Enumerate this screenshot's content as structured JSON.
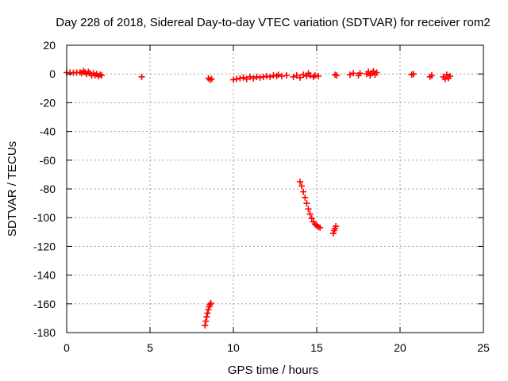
{
  "chart_data": {
    "type": "scatter",
    "title": "Day 228 of 2018, Sidereal Day-to-day VTEC variation (SDTVAR) for receiver rom2",
    "xlabel": "GPS time / hours",
    "ylabel": "SDTVAR / TECUs",
    "xlim": [
      0,
      25
    ],
    "ylim": [
      -180,
      20
    ],
    "xticks": [
      0,
      5,
      10,
      15,
      20,
      25
    ],
    "yticks": [
      20,
      0,
      -20,
      -40,
      -60,
      -80,
      -100,
      -120,
      -140,
      -160,
      -180
    ],
    "grid": true,
    "marker": "plus",
    "color": "#ff0000",
    "series": [
      {
        "name": "SDTVAR",
        "points": [
          [
            0.0,
            1.0
          ],
          [
            0.2,
            1.0
          ],
          [
            0.4,
            0.8
          ],
          [
            0.6,
            1.0
          ],
          [
            0.8,
            1.2
          ],
          [
            0.9,
            0.5
          ],
          [
            1.0,
            2.0
          ],
          [
            1.1,
            1.2
          ],
          [
            1.2,
            0.0
          ],
          [
            1.3,
            1.5
          ],
          [
            1.4,
            0.5
          ],
          [
            1.5,
            -1.0
          ],
          [
            1.6,
            0.5
          ],
          [
            1.7,
            -1.0
          ],
          [
            1.8,
            0.0
          ],
          [
            1.9,
            -1.5
          ],
          [
            2.0,
            -0.5
          ],
          [
            2.1,
            -1.0
          ],
          [
            4.5,
            -2.0
          ],
          [
            8.5,
            -3.0
          ],
          [
            8.6,
            -4.0
          ],
          [
            8.7,
            -3.5
          ],
          [
            10.0,
            -4.0
          ],
          [
            10.2,
            -3.5
          ],
          [
            10.4,
            -3.0
          ],
          [
            10.6,
            -2.5
          ],
          [
            10.8,
            -3.5
          ],
          [
            11.0,
            -2.0
          ],
          [
            11.2,
            -3.0
          ],
          [
            11.4,
            -2.0
          ],
          [
            11.6,
            -2.5
          ],
          [
            11.8,
            -2.0
          ],
          [
            12.0,
            -1.5
          ],
          [
            12.2,
            -2.0
          ],
          [
            12.4,
            -1.0
          ],
          [
            12.6,
            -1.5
          ],
          [
            12.7,
            -0.5
          ],
          [
            12.9,
            -1.5
          ],
          [
            13.2,
            -1.0
          ],
          [
            13.6,
            -2.0
          ],
          [
            13.8,
            -1.0
          ],
          [
            14.0,
            -2.5
          ],
          [
            14.2,
            -0.5
          ],
          [
            14.4,
            -1.5
          ],
          [
            14.5,
            0.5
          ],
          [
            14.6,
            -1.0
          ],
          [
            14.8,
            -2.0
          ],
          [
            14.9,
            -1.0
          ],
          [
            15.1,
            -1.5
          ],
          [
            16.1,
            -0.5
          ],
          [
            16.2,
            -1.0
          ],
          [
            17.0,
            -0.5
          ],
          [
            17.2,
            0.5
          ],
          [
            17.5,
            -1.0
          ],
          [
            17.6,
            0.5
          ],
          [
            18.0,
            0.0
          ],
          [
            18.1,
            1.5
          ],
          [
            18.2,
            -1.0
          ],
          [
            18.3,
            0.5
          ],
          [
            18.4,
            2.0
          ],
          [
            18.5,
            -0.5
          ],
          [
            18.6,
            1.0
          ],
          [
            20.7,
            -0.5
          ],
          [
            20.8,
            0.0
          ],
          [
            21.8,
            -2.0
          ],
          [
            21.9,
            -1.0
          ],
          [
            22.6,
            -2.0
          ],
          [
            22.7,
            -3.5
          ],
          [
            22.8,
            -0.5
          ],
          [
            22.9,
            -3.0
          ],
          [
            23.0,
            -1.5
          ],
          [
            8.3,
            -175.0
          ],
          [
            8.35,
            -172.0
          ],
          [
            8.4,
            -169.0
          ],
          [
            8.45,
            -166.5
          ],
          [
            8.5,
            -164.0
          ],
          [
            8.55,
            -162.0
          ],
          [
            8.6,
            -160.5
          ],
          [
            8.65,
            -159.5
          ],
          [
            14.0,
            -75.0
          ],
          [
            14.1,
            -78.0
          ],
          [
            14.2,
            -82.0
          ],
          [
            14.3,
            -86.0
          ],
          [
            14.4,
            -90.0
          ],
          [
            14.5,
            -94.0
          ],
          [
            14.6,
            -97.5
          ],
          [
            14.7,
            -100.5
          ],
          [
            14.8,
            -103.0
          ],
          [
            14.9,
            -104.5
          ],
          [
            15.0,
            -105.5
          ],
          [
            15.1,
            -106.5
          ],
          [
            15.2,
            -107.0
          ],
          [
            16.0,
            -111.0
          ],
          [
            16.05,
            -109.0
          ],
          [
            16.1,
            -107.5
          ],
          [
            16.15,
            -106.0
          ]
        ]
      }
    ]
  }
}
